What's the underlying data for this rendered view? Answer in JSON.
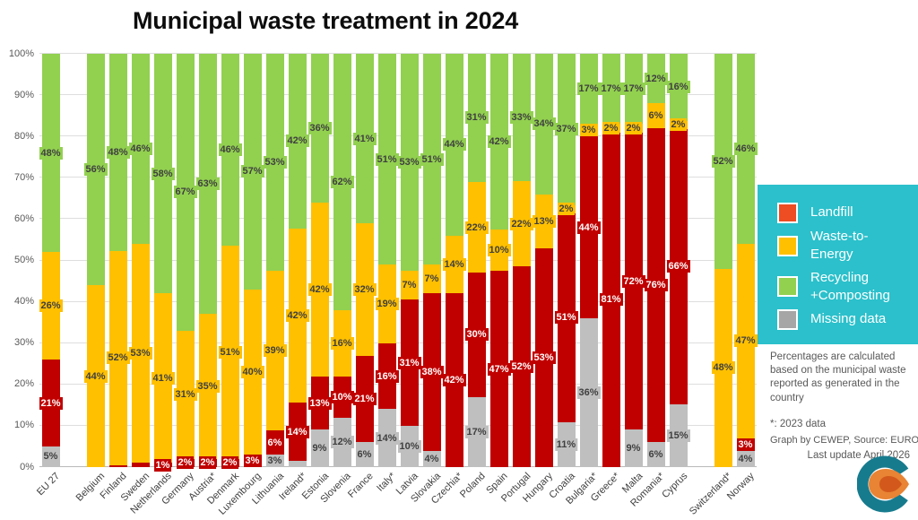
{
  "title": "Municipal waste treatment in 2024",
  "legend": {
    "background": "#2bc0cb",
    "items": [
      {
        "key": "landfill",
        "label": "Landfill",
        "swatch_color": "#ee4c22"
      },
      {
        "key": "wte",
        "label": "Waste-to-Energy",
        "swatch_color": "#ffc000"
      },
      {
        "key": "recycling",
        "label": "Recycling\n+Composting",
        "swatch_color": "#92d050"
      },
      {
        "key": "missing",
        "label": "Missing data",
        "swatch_color": "#a6a6a6"
      }
    ]
  },
  "notes": {
    "body": "Percentages are calculated based on the municipal waste reported as generated in the country",
    "footnote_star": "*: 2023 data",
    "credit": "Graph by CEWEP, Source: EUROSTAT",
    "updated": "Last update April 2026"
  },
  "logo": {
    "teal": "#177b8e",
    "orange": "#e88434",
    "orange_dark": "#d2591b"
  },
  "chart_data": {
    "type": "bar",
    "variant": "stacked-100-percent",
    "title": "Municipal waste treatment in 2024",
    "xlabel": "",
    "ylabel": "",
    "ylim": [
      0,
      100
    ],
    "grid": true,
    "legend_position": "right",
    "y_ticks": [
      "0%",
      "10%",
      "20%",
      "30%",
      "40%",
      "50%",
      "60%",
      "70%",
      "80%",
      "90%",
      "100%"
    ],
    "stack_order_bottom_to_top": [
      "missing",
      "landfill",
      "wte",
      "recycling"
    ],
    "series_meta": [
      {
        "key": "missing",
        "name": "Missing data",
        "color": "#bfbfbf",
        "label_color": "#3f3f3f"
      },
      {
        "key": "landfill",
        "name": "Landfill",
        "color": "#c00000",
        "label_color": "#ffffff"
      },
      {
        "key": "wte",
        "name": "Waste-to-Energy",
        "color": "#ffc000",
        "label_color": "#3f3f3f"
      },
      {
        "key": "recycling",
        "name": "Recycling+Composting",
        "color": "#92d050",
        "label_color": "#3f3f3f"
      }
    ],
    "countries": [
      {
        "name": "EU 27",
        "segs": [
          5,
          21,
          26,
          48
        ],
        "labs": [
          "5%",
          "21%",
          "26%",
          "48%"
        ],
        "gap_after": true
      },
      {
        "name": "Belgium",
        "segs": [
          0,
          0,
          44,
          56
        ],
        "labs": [
          "",
          "",
          "44%",
          "56%"
        ]
      },
      {
        "name": "Finland",
        "segs": [
          0,
          0.5,
          52,
          48
        ],
        "labs": [
          "",
          "",
          "52%",
          "48%"
        ]
      },
      {
        "name": "Sweden",
        "segs": [
          0,
          1,
          53,
          46
        ],
        "labs": [
          "",
          "",
          "53%",
          "46%"
        ]
      },
      {
        "name": "Netherlands",
        "segs": [
          0,
          1,
          41,
          58
        ],
        "labs": [
          "",
          "1%",
          "41%",
          "58%"
        ]
      },
      {
        "name": "Germany",
        "segs": [
          0,
          2,
          31,
          67
        ],
        "labs": [
          "",
          "2%",
          "31%",
          "67%"
        ]
      },
      {
        "name": "Austria*",
        "segs": [
          0,
          2,
          35,
          63
        ],
        "labs": [
          "",
          "2%",
          "35%",
          "63%"
        ]
      },
      {
        "name": "Denmark",
        "segs": [
          0,
          2,
          51,
          46
        ],
        "labs": [
          "",
          "2%",
          "51%",
          "46%"
        ]
      },
      {
        "name": "Luxembourg",
        "segs": [
          0,
          3,
          40,
          57
        ],
        "labs": [
          "",
          "3%",
          "40%",
          "57%"
        ]
      },
      {
        "name": "Lithuania",
        "segs": [
          3,
          6,
          39,
          53
        ],
        "labs": [
          "3%",
          "6%",
          "39%",
          "53%"
        ]
      },
      {
        "name": "Ireland*",
        "segs": [
          1.5,
          14,
          42,
          42
        ],
        "labs": [
          "",
          "14%",
          "42%",
          "42%"
        ]
      },
      {
        "name": "Estonia",
        "segs": [
          9,
          13,
          42,
          36
        ],
        "labs": [
          "9%",
          "13%",
          "42%",
          "36%"
        ]
      },
      {
        "name": "Slovenia",
        "segs": [
          12,
          10,
          16,
          62
        ],
        "labs": [
          "12%",
          "10%",
          "16%",
          "62%"
        ]
      },
      {
        "name": "France",
        "segs": [
          6,
          21,
          32,
          41
        ],
        "labs": [
          "6%",
          "21%",
          "32%",
          "41%"
        ]
      },
      {
        "name": "Italy*",
        "segs": [
          14,
          16,
          19,
          51
        ],
        "labs": [
          "14%",
          "16%",
          "19%",
          "51%"
        ]
      },
      {
        "name": "Latvia",
        "segs": [
          10,
          31,
          7,
          53
        ],
        "labs": [
          "10%",
          "31%",
          "7%",
          "53%"
        ]
      },
      {
        "name": "Slovakia",
        "segs": [
          4,
          38,
          7,
          51
        ],
        "labs": [
          "4%",
          "38%",
          "7%",
          "51%"
        ]
      },
      {
        "name": "Czechia*",
        "segs": [
          0,
          42,
          14,
          44
        ],
        "labs": [
          "",
          "42%",
          "14%",
          "44%"
        ]
      },
      {
        "name": "Poland",
        "segs": [
          17,
          30,
          22,
          31
        ],
        "labs": [
          "17%",
          "30%",
          "22%",
          "31%"
        ]
      },
      {
        "name": "Spain",
        "segs": [
          0,
          47,
          10,
          42
        ],
        "labs": [
          "",
          "47%",
          "10%",
          "42%"
        ]
      },
      {
        "name": "Portugal",
        "segs": [
          0,
          52,
          22,
          33
        ],
        "labs": [
          "",
          "52%",
          "22%",
          "33%"
        ]
      },
      {
        "name": "Hungary",
        "segs": [
          0,
          53,
          13,
          34
        ],
        "labs": [
          "",
          "53%",
          "13%",
          "34%"
        ]
      },
      {
        "name": "Croatia",
        "segs": [
          11,
          51,
          2,
          37
        ],
        "labs": [
          "11%",
          "51%",
          "2%",
          "37%"
        ]
      },
      {
        "name": "Bulgaria*",
        "segs": [
          36,
          44,
          3,
          17
        ],
        "labs": [
          "36%",
          "44%",
          "3%",
          "17%"
        ]
      },
      {
        "name": "Greece*",
        "segs": [
          0,
          81,
          2,
          17
        ],
        "labs": [
          "",
          "81%",
          "2%",
          "17%"
        ]
      },
      {
        "name": "Malta",
        "segs": [
          9,
          72,
          2,
          17
        ],
        "labs": [
          "9%",
          "72%",
          "2%",
          "17%"
        ]
      },
      {
        "name": "Romania*",
        "segs": [
          6,
          76,
          6,
          12
        ],
        "labs": [
          "6%",
          "76%",
          "6%",
          "12%"
        ]
      },
      {
        "name": "Cyprus",
        "segs": [
          15,
          66,
          2,
          16
        ],
        "labs": [
          "15%",
          "66%",
          "2%",
          "16%"
        ],
        "gap_after": true
      },
      {
        "name": "Switzerland*",
        "segs": [
          0,
          0,
          48,
          52
        ],
        "labs": [
          "",
          "",
          "48%",
          "52%"
        ]
      },
      {
        "name": "Norway",
        "segs": [
          4,
          3,
          47,
          46
        ],
        "labs": [
          "4%",
          "3%",
          "47%",
          "46%"
        ]
      }
    ]
  }
}
